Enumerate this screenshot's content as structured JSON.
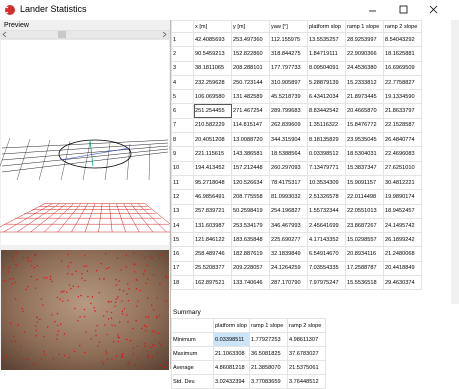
{
  "window": {
    "title": "Lander Statistics"
  },
  "preview": {
    "label": "Preview"
  },
  "table": {
    "columns": [
      "x [m]",
      "y [m]",
      "yaw [°]",
      "platform slop",
      "ramp 1 slope",
      "ramp 2 slope"
    ],
    "rows": [
      [
        "1",
        "42.4085693",
        "253.497360",
        "112.155975",
        "13.5535257",
        "28.9253997",
        "8.54043292"
      ],
      [
        "2",
        "90.5459213",
        "152.822860",
        "318.844275",
        "1.84719111",
        "22.9090366",
        "18.1625881"
      ],
      [
        "3",
        "38.1811065",
        "208.288101",
        "177.797733",
        "8.09504091",
        "24.4536380",
        "16.6969509"
      ],
      [
        "4",
        "232.259628",
        "250.723144",
        "310.905897",
        "5.28879139",
        "15.2333812",
        "22.7758827"
      ],
      [
        "5",
        "106.069580",
        "131.482589",
        "45.5218739",
        "6.43412034",
        "21.8973445",
        "19.1334590"
      ],
      [
        "6",
        "251.254455",
        "271.467254",
        "289.799683",
        "8.83442542",
        "20.4665870",
        "21.8633797"
      ],
      [
        "7",
        "210.582229",
        "114.815147",
        "262.839609",
        "1.35116322",
        "15.8476772",
        "22.1528587"
      ],
      [
        "8",
        "20.4051208",
        "13.0088720",
        "344.315904",
        "8.18135829",
        "23.9535045",
        "26.4840774"
      ],
      [
        "9",
        "221.115615",
        "143.386581",
        "18.5388564",
        "0.03398512",
        "18.5304031",
        "22.4696083"
      ],
      [
        "10",
        "194.413452",
        "157.212448",
        "260.297093",
        "7.13479771",
        "15.3837347",
        "27.6251010"
      ],
      [
        "11",
        "95.2718048",
        "120.526634",
        "78.4175317",
        "10.3534309",
        "15.9091157",
        "30.4812221"
      ],
      [
        "12",
        "46.9856491",
        "208.775558",
        "81.0993032",
        "2.51326578",
        "22.0114498",
        "19.9890174"
      ],
      [
        "13",
        "257.839721",
        "50.2598419",
        "254.196827",
        "1.55732344",
        "22.0551013",
        "18.9452457"
      ],
      [
        "14",
        "131.603987",
        "253.534179",
        "346.467993",
        "2.45641699",
        "23.8687267",
        "24.1495742"
      ],
      [
        "15",
        "121.846122",
        "183.635848",
        "225.690277",
        "4.17143352",
        "15.0298557",
        "26.1899242"
      ],
      [
        "16",
        "258.489746",
        "182.887619",
        "32.1839849",
        "6.54914670",
        "20.8934116",
        "21.2480068"
      ],
      [
        "17",
        "25.5208377",
        "209.228057",
        "24.1264259",
        "7.03554335",
        "17.2588787",
        "20.4418849"
      ],
      [
        "18",
        "162.897521",
        "133.740646",
        "287.170790",
        "7.97975247",
        "15.5536518",
        "29.4630374"
      ]
    ]
  },
  "summary": {
    "label": "Summary",
    "columns": [
      "platform slop",
      "ramp 1 slope",
      "ramp 2 slope"
    ],
    "rows": [
      [
        "Minimum",
        "0.03398511",
        "1.77927253",
        "4.98611307"
      ],
      [
        "Maximum",
        "21.1063308",
        "36.5081825",
        "37.6783027"
      ],
      [
        "Average",
        "4.86081218",
        "21.3858070",
        "21.5375061"
      ],
      [
        "Std. Dev.",
        "3.02432394",
        "3.77083659",
        "3.76448512"
      ]
    ]
  }
}
